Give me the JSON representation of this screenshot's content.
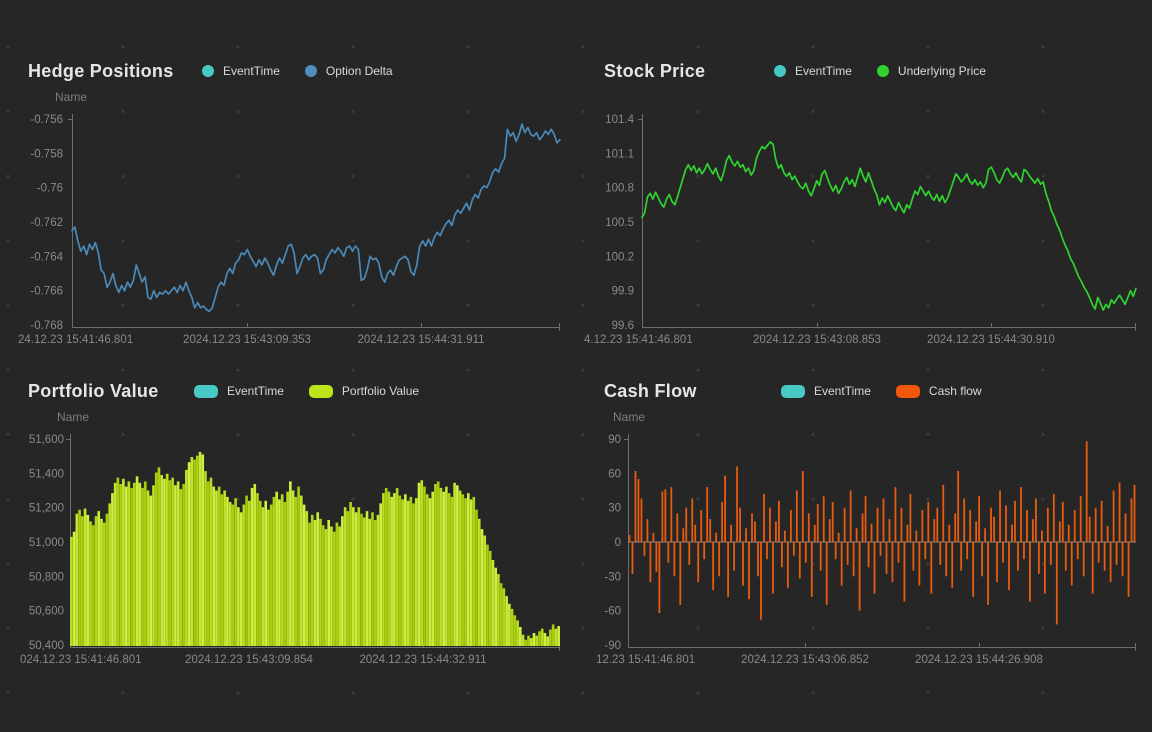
{
  "page": {
    "background_color": "#262626",
    "dot_grid_color": "#3a3a3a"
  },
  "chart_data": [
    {
      "type": "line",
      "title": "Hedge Positions",
      "y_axis_label": "Name",
      "legend": [
        {
          "label": "EventTime",
          "color": "#48C8C4",
          "marker": "circle"
        },
        {
          "label": "Option Delta",
          "color": "#4C8EC0",
          "marker": "circle"
        }
      ],
      "line_color": "#4A89B8",
      "ylim": [
        -0.768,
        -0.756
      ],
      "y_tick_labels": [
        "-0.756",
        "-0.758",
        "-0.76",
        "-0.762",
        "-0.764",
        "-0.766",
        "-0.768"
      ],
      "x_tick_labels": [
        "24.12.23 15:41:46.801",
        "2024.12.23 15:43:09.353",
        "2024.12.23 15:44:31.911"
      ],
      "values": [
        -0.7625,
        -0.7623,
        -0.7631,
        -0.7637,
        -0.7634,
        -0.7639,
        -0.7633,
        -0.7636,
        -0.7632,
        -0.7638,
        -0.7648,
        -0.765,
        -0.7658,
        -0.7655,
        -0.765,
        -0.7657,
        -0.7661,
        -0.7657,
        -0.766,
        -0.7655,
        -0.7658,
        -0.7654,
        -0.7645,
        -0.765,
        -0.7655,
        -0.7652,
        -0.7664,
        -0.7665,
        -0.766,
        -0.7664,
        -0.7661,
        -0.7662,
        -0.766,
        -0.7662,
        -0.766,
        -0.7658,
        -0.7661,
        -0.7657,
        -0.766,
        -0.7655,
        -0.766,
        -0.7664,
        -0.767,
        -0.7667,
        -0.767,
        -0.7669,
        -0.7671,
        -0.7672,
        -0.767,
        -0.7664,
        -0.7658,
        -0.7655,
        -0.7657,
        -0.765,
        -0.7647,
        -0.765,
        -0.7644,
        -0.7642,
        -0.7638,
        -0.7639,
        -0.7636,
        -0.764,
        -0.7643,
        -0.7646,
        -0.7642,
        -0.7645,
        -0.7641,
        -0.7644,
        -0.7648,
        -0.7651,
        -0.7645,
        -0.7641,
        -0.7644,
        -0.7639,
        -0.7634,
        -0.7633,
        -0.7638,
        -0.765,
        -0.7646,
        -0.7641,
        -0.7639,
        -0.7642,
        -0.764,
        -0.7639,
        -0.7641,
        -0.765,
        -0.7648,
        -0.7642,
        -0.7639,
        -0.7636,
        -0.7638,
        -0.7635,
        -0.7637,
        -0.764,
        -0.7635,
        -0.7634,
        -0.7637,
        -0.7634,
        -0.7636,
        -0.7654,
        -0.7653,
        -0.7648,
        -0.764,
        -0.7642,
        -0.7641,
        -0.7644,
        -0.7652,
        -0.7655,
        -0.765,
        -0.7648,
        -0.7651,
        -0.7646,
        -0.7642,
        -0.7641,
        -0.764,
        -0.7642,
        -0.7649,
        -0.7651,
        -0.7645,
        -0.7634,
        -0.7631,
        -0.7634,
        -0.763,
        -0.7634,
        -0.7629,
        -0.7626,
        -0.7628,
        -0.7624,
        -0.7621,
        -0.7619,
        -0.7622,
        -0.7616,
        -0.7613,
        -0.7615,
        -0.7612,
        -0.7609,
        -0.7613,
        -0.7607,
        -0.7604,
        -0.7606,
        -0.7601,
        -0.7599,
        -0.76,
        -0.7596,
        -0.7591,
        -0.7589,
        -0.7591,
        -0.7586,
        -0.7583,
        -0.7566,
        -0.757,
        -0.7568,
        -0.7573,
        -0.7569,
        -0.7563,
        -0.7568,
        -0.7565,
        -0.7569,
        -0.757,
        -0.7568,
        -0.7572,
        -0.757,
        -0.7567,
        -0.7569,
        -0.7566,
        -0.7569,
        -0.7574,
        -0.7572
      ]
    },
    {
      "type": "line",
      "title": "Stock Price",
      "y_axis_label": "",
      "legend": [
        {
          "label": "EventTime",
          "color": "#48C8C4",
          "marker": "circle"
        },
        {
          "label": "Underlying Price",
          "color": "#2FD32F",
          "marker": "circle"
        }
      ],
      "line_color": "#2FD32F",
      "ylim": [
        99.6,
        101.4
      ],
      "y_tick_labels": [
        "101.4",
        "101.1",
        "100.8",
        "100.5",
        "100.2",
        "99.9",
        "99.6"
      ],
      "x_tick_labels": [
        "4.12.23 15:41:46.801",
        "2024.12.23 15:43:08.853",
        "2024.12.23 15:44:30.910"
      ],
      "values": [
        100.54,
        100.58,
        100.72,
        100.75,
        100.7,
        100.76,
        100.71,
        100.66,
        100.63,
        100.7,
        100.74,
        100.68,
        100.65,
        100.72,
        100.8,
        100.88,
        100.96,
        101.0,
        100.95,
        100.99,
        100.93,
        100.97,
        100.92,
        100.96,
        101.01,
        100.96,
        100.92,
        100.97,
        100.9,
        100.86,
        100.94,
        101.04,
        101.08,
        101.02,
        100.99,
        101.03,
        100.98,
        101.0,
        100.94,
        100.97,
        100.91,
        100.95,
        101.06,
        101.12,
        101.16,
        101.14,
        101.17,
        101.2,
        101.18,
        101.05,
        100.97,
        101.0,
        100.93,
        100.9,
        100.93,
        100.87,
        100.9,
        100.85,
        100.81,
        100.79,
        100.84,
        100.77,
        100.73,
        100.79,
        100.86,
        100.82,
        100.92,
        100.95,
        100.88,
        100.82,
        100.77,
        100.82,
        100.75,
        100.79,
        100.85,
        100.89,
        100.83,
        100.87,
        100.81,
        100.89,
        100.97,
        100.9,
        100.85,
        100.93,
        100.86,
        100.79,
        100.74,
        100.65,
        100.71,
        100.67,
        100.73,
        100.68,
        100.63,
        100.6,
        100.67,
        100.62,
        100.58,
        100.65,
        100.62,
        100.7,
        100.77,
        100.74,
        100.81,
        100.77,
        100.73,
        100.77,
        100.72,
        100.69,
        100.74,
        100.68,
        100.73,
        100.67,
        100.71,
        100.78,
        100.85,
        100.92,
        100.89,
        100.85,
        100.88,
        100.92,
        100.86,
        100.83,
        100.87,
        100.82,
        100.85,
        100.8,
        100.84,
        100.96,
        100.98,
        100.93,
        100.87,
        100.84,
        100.89,
        100.95,
        100.97,
        100.92,
        100.89,
        100.93,
        100.88,
        100.85,
        100.96,
        100.94,
        100.9,
        100.87,
        100.84,
        100.88,
        100.83,
        100.85,
        100.75,
        100.68,
        100.6,
        100.55,
        100.48,
        100.43,
        100.36,
        100.3,
        100.25,
        100.18,
        100.14,
        100.08,
        100.02,
        99.98,
        99.93,
        99.89,
        99.84,
        99.78,
        99.74,
        99.84,
        99.79,
        99.73,
        99.78,
        99.75,
        99.82,
        99.79,
        99.83,
        99.86,
        99.82,
        99.78,
        99.84,
        99.9,
        99.85,
        99.92
      ]
    },
    {
      "type": "bar",
      "title": "Portfolio Value",
      "y_axis_label": "Name",
      "legend": [
        {
          "label": "EventTime",
          "color": "#48C8C4",
          "marker": "rect"
        },
        {
          "label": "Portfolio Value",
          "color": "#BCE51A",
          "marker": "rect"
        }
      ],
      "bar_colors": [
        "#A6CC0A",
        "#CFF140"
      ],
      "ylim": [
        50400,
        51600
      ],
      "y_tick_labels": [
        "51,600",
        "51,400",
        "51,200",
        "51,000",
        "50,800",
        "50,600",
        "50,400"
      ],
      "x_tick_labels": [
        "024.12.23 15:41:46.801",
        "2024.12.23 15:43:09.854",
        "2024.12.23 15:44:32.911"
      ],
      "values": [
        51030,
        51060,
        51165,
        51188,
        51150,
        51195,
        51158,
        51120,
        51098,
        51150,
        51180,
        51135,
        51113,
        51165,
        51225,
        51285,
        51345,
        51375,
        51338,
        51368,
        51323,
        51353,
        51315,
        51345,
        51383,
        51345,
        51315,
        51353,
        51300,
        51270,
        51330,
        51405,
        51435,
        51390,
        51368,
        51398,
        51360,
        51375,
        51330,
        51353,
        51308,
        51338,
        51420,
        51465,
        51495,
        51480,
        51503,
        51525,
        51510,
        51413,
        51353,
        51375,
        51323,
        51300,
        51323,
        51278,
        51300,
        51263,
        51233,
        51218,
        51255,
        51203,
        51173,
        51218,
        51270,
        51240,
        51315,
        51338,
        51285,
        51240,
        51203,
        51240,
        51188,
        51218,
        51263,
        51293,
        51248,
        51278,
        51233,
        51293,
        51353,
        51300,
        51263,
        51323,
        51270,
        51218,
        51180,
        51113,
        51158,
        51128,
        51173,
        51135,
        51098,
        51075,
        51128,
        51090,
        51060,
        51113,
        51090,
        51150,
        51203,
        51180,
        51233,
        51203,
        51173,
        51203,
        51165,
        51143,
        51180,
        51135,
        51173,
        51128,
        51158,
        51225,
        51285,
        51315,
        51293,
        51263,
        51285,
        51315,
        51270,
        51248,
        51278,
        51240,
        51263,
        51225,
        51255,
        51345,
        51360,
        51323,
        51278,
        51255,
        51293,
        51338,
        51353,
        51315,
        51293,
        51323,
        51285,
        51263,
        51345,
        51330,
        51300,
        51278,
        51255,
        51285,
        51248,
        51263,
        51188,
        51135,
        51075,
        51038,
        50985,
        50948,
        50895,
        50850,
        50813,
        50760,
        50730,
        50685,
        50640,
        50610,
        50573,
        50543,
        50505,
        50460,
        50430,
        50455,
        50440,
        50470,
        50455,
        50480,
        50495,
        50470,
        50450,
        50490,
        50520,
        50495,
        50510
      ]
    },
    {
      "type": "bar",
      "title": "Cash Flow",
      "y_axis_label": "Name",
      "legend": [
        {
          "label": "EventTime",
          "color": "#48C8C4",
          "marker": "rect"
        },
        {
          "label": "Cash flow",
          "color": "#F2570C",
          "marker": "rect"
        }
      ],
      "bar_colors": [
        "#E85C0E",
        "#E85C0E"
      ],
      "ylim": [
        -90,
        90
      ],
      "y_tick_labels": [
        "90",
        "60",
        "30",
        "0",
        "-30",
        "-60",
        "-90"
      ],
      "x_tick_labels": [
        "12.23 15:41:46.801",
        "2024.12.23 15:43:06.852",
        "2024.12.23 15:44:26.908"
      ],
      "values": [
        6,
        -28,
        62,
        55,
        38,
        -12,
        20,
        -35,
        8,
        -26,
        -62,
        44,
        46,
        -18,
        48,
        -30,
        25,
        -55,
        12,
        30,
        -20,
        38,
        15,
        -35,
        28,
        -15,
        48,
        20,
        -42,
        8,
        -30,
        35,
        58,
        -48,
        15,
        -25,
        66,
        30,
        -38,
        12,
        -50,
        25,
        18,
        -30,
        -68,
        42,
        -15,
        30,
        -45,
        18,
        36,
        -22,
        10,
        -40,
        28,
        -12,
        45,
        -32,
        62,
        -18,
        25,
        -48,
        15,
        33,
        -25,
        40,
        -55,
        20,
        35,
        -15,
        8,
        -38,
        30,
        -20,
        45,
        -30,
        12,
        -60,
        25,
        40,
        -22,
        16,
        -45,
        30,
        -12,
        38,
        -28,
        20,
        -35,
        48,
        -18,
        30,
        -52,
        15,
        42,
        -25,
        10,
        -38,
        28,
        -15,
        35,
        -45,
        20,
        30,
        -20,
        50,
        -30,
        15,
        -40,
        25,
        62,
        -25,
        38,
        -15,
        28,
        -48,
        18,
        40,
        -30,
        12,
        -55,
        30,
        22,
        -35,
        45,
        -18,
        32,
        -42,
        15,
        36,
        -25,
        48,
        -15,
        28,
        -52,
        20,
        38,
        -28,
        10,
        -45,
        30,
        -20,
        42,
        -72,
        18,
        35,
        -25,
        15,
        -38,
        28,
        -15,
        40,
        -30,
        88,
        22,
        -45,
        30,
        -18,
        36,
        -25,
        14,
        -35,
        45,
        -20,
        52,
        -30,
        25,
        -48,
        38,
        50
      ]
    }
  ]
}
